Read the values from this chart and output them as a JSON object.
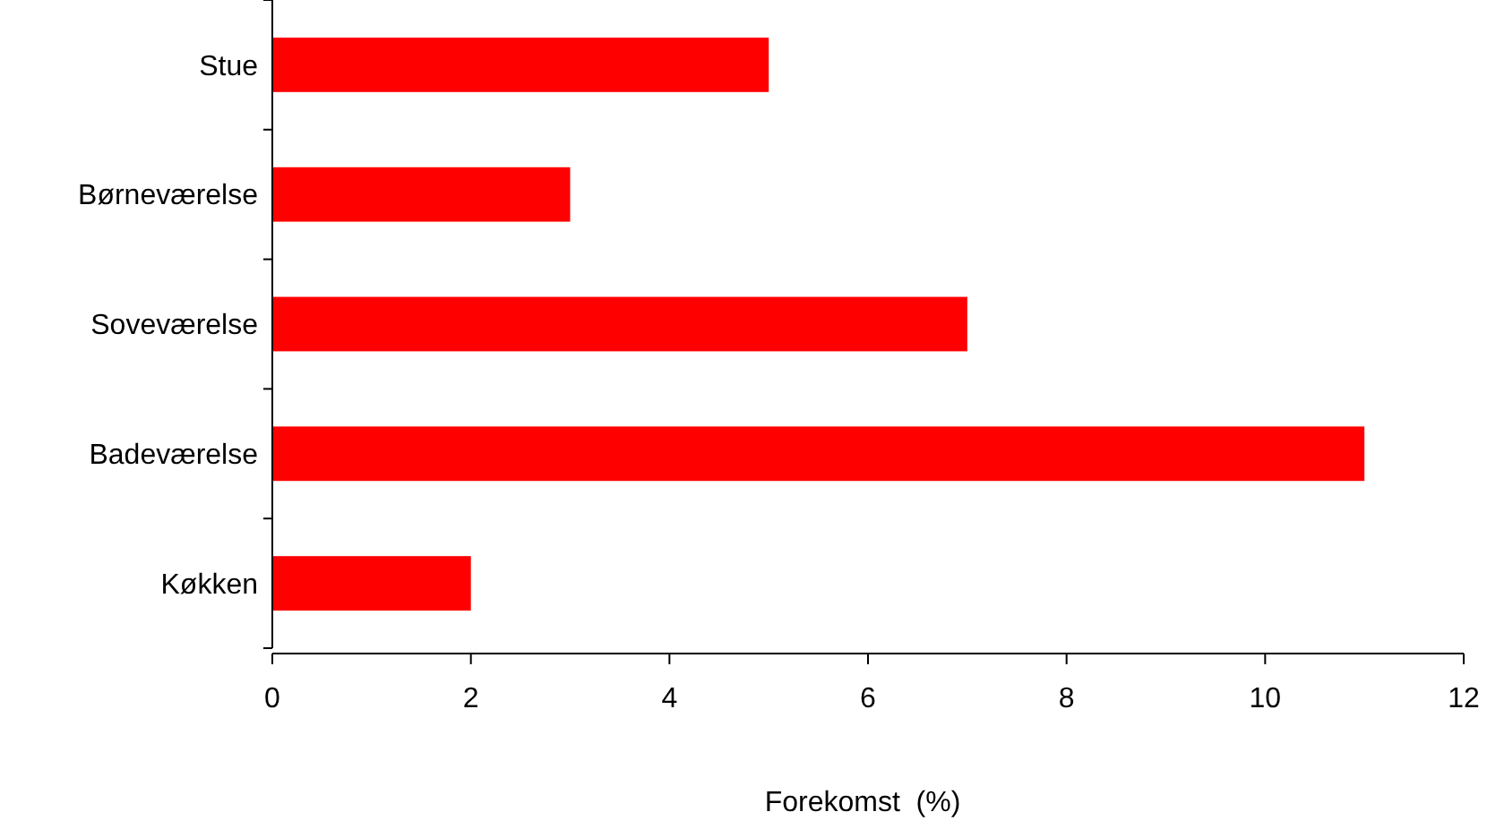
{
  "chart_data": {
    "type": "bar",
    "orientation": "horizontal",
    "xlabel": "Forekomst  (%)",
    "categories": [
      "Stue",
      "Børneværelse",
      "Soveværelse",
      "Badeværelse",
      "Køkken"
    ],
    "values": [
      5,
      3,
      7,
      11,
      2
    ],
    "color": "#ff0000",
    "xlim": [
      0,
      12
    ],
    "xticks": [
      0,
      2,
      4,
      6,
      8,
      10,
      12
    ],
    "grid": false
  }
}
